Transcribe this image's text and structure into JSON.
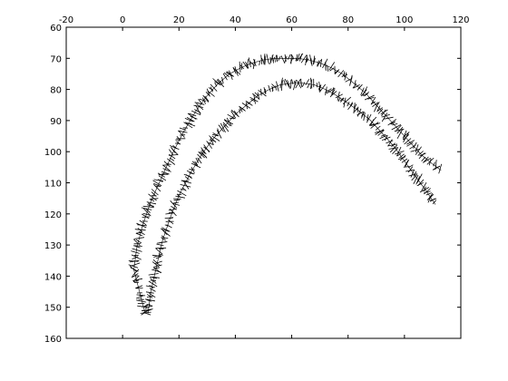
{
  "chart_data": {
    "type": "scatter",
    "title": "",
    "xlabel": "",
    "ylabel": "",
    "xlim": [
      -20,
      120
    ],
    "ylim": [
      60,
      160
    ],
    "y_axis_inverted": true,
    "x_axis_position": "top",
    "grid": false,
    "xticks": [
      "-20",
      "0",
      "20",
      "40",
      "60",
      "80",
      "100",
      "120"
    ],
    "yticks": [
      "60",
      "70",
      "80",
      "90",
      "100",
      "110",
      "120",
      "130",
      "140",
      "150",
      "160"
    ],
    "marker": "short oriented line segments (quiver-like)",
    "color": "#000000",
    "series": [
      {
        "path": "outer arc",
        "x": [
          8,
          6,
          4,
          5,
          7,
          10,
          14,
          18,
          22,
          26,
          30,
          34,
          38,
          42,
          46,
          50,
          54,
          58,
          62,
          66,
          70,
          74,
          78,
          82,
          86,
          90,
          94,
          98,
          102,
          106,
          110,
          113
        ],
        "y": [
          152,
          145,
          138,
          131,
          124,
          116,
          108,
          100,
          93,
          87,
          82,
          78,
          75,
          73,
          71.5,
          70.5,
          70,
          70,
          70,
          70.5,
          71.5,
          73,
          75,
          78,
          81,
          85,
          89,
          93,
          97,
          101,
          104,
          106
        ]
      },
      {
        "path": "inner arc",
        "x": [
          9,
          10,
          12,
          14,
          17,
          20,
          24,
          28,
          32,
          36,
          40,
          44,
          48,
          52,
          56,
          60,
          64,
          68,
          72,
          76,
          80,
          84,
          88,
          92,
          96,
          100,
          104,
          108,
          111
        ],
        "y": [
          152,
          145,
          137,
          129,
          121,
          114,
          107,
          101,
          96,
          92,
          88,
          85,
          82,
          80,
          78.5,
          78,
          78,
          78.5,
          80,
          82,
          84.5,
          87,
          90,
          94,
          98,
          103,
          108,
          113,
          117
        ]
      }
    ]
  }
}
